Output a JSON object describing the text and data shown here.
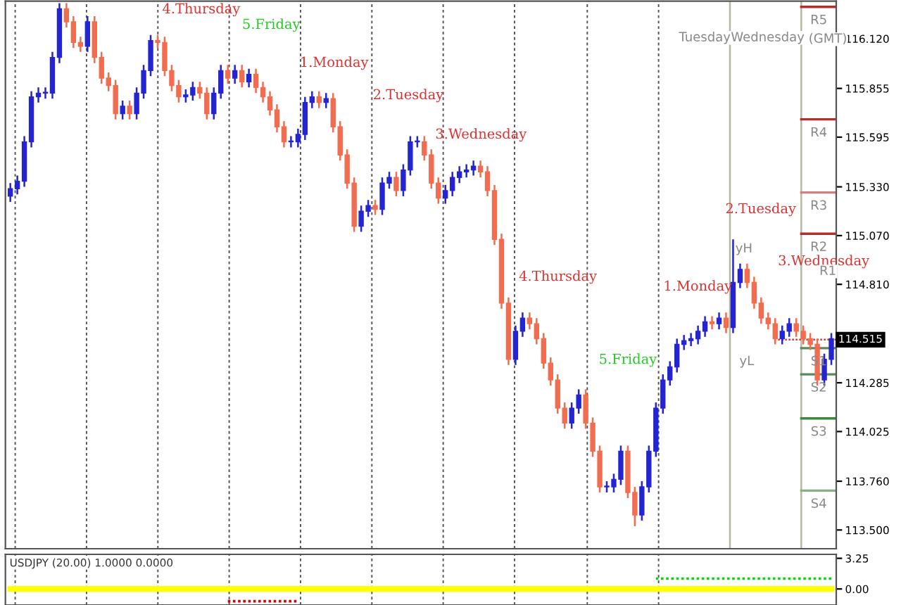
{
  "chart_data": [
    {
      "type": "candlestick",
      "categories": [
        null,
        null,
        null,
        null,
        null,
        null,
        null,
        null,
        null,
        null,
        null,
        null,
        null,
        null,
        null,
        null,
        null,
        null,
        null,
        null,
        null,
        null,
        null,
        null,
        null,
        null,
        null,
        null,
        null,
        null,
        null,
        null,
        null,
        null,
        null,
        null,
        null,
        null,
        null,
        null,
        null,
        null,
        null,
        null,
        null,
        null,
        null,
        null,
        null,
        null,
        null,
        null,
        null,
        null,
        null,
        null,
        null,
        null,
        null,
        null,
        null,
        null,
        null,
        null,
        null,
        null,
        null,
        null,
        null,
        null,
        null,
        null,
        null,
        null,
        null,
        null,
        null,
        null,
        null,
        null,
        null,
        null,
        null,
        null,
        null,
        null,
        null,
        null,
        null,
        null,
        null,
        null,
        null,
        null,
        null,
        null,
        null,
        null,
        null,
        null,
        null,
        null,
        null,
        null,
        null,
        null,
        null,
        null,
        null,
        null,
        null,
        null,
        null,
        null,
        null,
        null,
        null,
        null
      ],
      "ylim": [
        113.4,
        116.32
      ],
      "yticks": [
        {
          "value": 116.12,
          "label": "116.120"
        },
        115.855,
        115.595,
        {
          "value": 115.33,
          "label": "115.330"
        },
        {
          "value": 115.07,
          "label": "115.070"
        },
        {
          "value": 114.81,
          "label": "114.810"
        },
        114.285,
        114.025,
        {
          "value": 113.76,
          "label": "113.760"
        },
        {
          "value": 113.5,
          "label": "113.500"
        }
      ],
      "grid": "x",
      "tick_labels": "y",
      "ohlc": [
        [
          115.28,
          115.35,
          115.25,
          115.32
        ],
        [
          115.32,
          115.39,
          115.29,
          115.36
        ],
        [
          115.36,
          115.6,
          115.33,
          115.57
        ],
        [
          115.57,
          115.84,
          115.54,
          115.81
        ],
        [
          115.81,
          115.86,
          115.78,
          115.83
        ],
        [
          115.83,
          115.86,
          115.8,
          115.83
        ],
        [
          115.83,
          116.05,
          115.8,
          116.02
        ],
        [
          116.02,
          116.31,
          115.99,
          116.28
        ],
        [
          116.28,
          116.31,
          116.18,
          116.21
        ],
        [
          116.21,
          116.24,
          116.07,
          116.1
        ],
        [
          116.1,
          116.13,
          116.05,
          116.08
        ],
        [
          116.08,
          116.24,
          116.05,
          116.21
        ],
        [
          116.21,
          116.24,
          115.99,
          116.02
        ],
        [
          116.02,
          116.05,
          115.88,
          115.91
        ],
        [
          115.91,
          115.94,
          115.84,
          115.87
        ],
        [
          115.87,
          115.9,
          115.69,
          115.72
        ],
        [
          115.72,
          115.79,
          115.69,
          115.76
        ],
        [
          115.76,
          115.79,
          115.69,
          115.72
        ],
        [
          115.72,
          115.86,
          115.69,
          115.83
        ],
        [
          115.83,
          115.98,
          115.8,
          115.95
        ],
        [
          115.95,
          116.14,
          115.92,
          116.11
        ],
        [
          116.11,
          116.14,
          116.07,
          116.1
        ],
        [
          116.1,
          116.13,
          115.92,
          115.95
        ],
        [
          115.95,
          115.98,
          115.84,
          115.87
        ],
        [
          115.87,
          115.9,
          115.78,
          115.81
        ],
        [
          115.81,
          115.85,
          115.78,
          115.82
        ],
        [
          115.82,
          115.89,
          115.79,
          115.86
        ],
        [
          115.86,
          115.89,
          115.8,
          115.83
        ],
        [
          115.83,
          115.86,
          115.69,
          115.72
        ],
        [
          115.72,
          115.86,
          115.69,
          115.83
        ],
        [
          115.83,
          115.98,
          115.8,
          115.95
        ],
        [
          115.95,
          115.98,
          115.88,
          115.91
        ],
        [
          115.91,
          115.98,
          115.88,
          115.95
        ],
        [
          115.95,
          115.98,
          115.86,
          115.89
        ],
        [
          115.89,
          115.96,
          115.86,
          115.93
        ],
        [
          115.93,
          115.96,
          115.83,
          115.86
        ],
        [
          115.86,
          115.89,
          115.78,
          115.81
        ],
        [
          115.81,
          115.84,
          115.71,
          115.74
        ],
        [
          115.74,
          115.77,
          115.62,
          115.65
        ],
        [
          115.65,
          115.68,
          115.54,
          115.57
        ],
        [
          115.57,
          115.6,
          115.54,
          115.57
        ],
        [
          115.57,
          115.64,
          115.54,
          115.61
        ],
        [
          115.61,
          115.81,
          115.58,
          115.78
        ],
        [
          115.78,
          115.84,
          115.75,
          115.81
        ],
        [
          115.81,
          115.84,
          115.75,
          115.78
        ],
        [
          115.78,
          115.83,
          115.75,
          115.8
        ],
        [
          115.8,
          115.83,
          115.62,
          115.65
        ],
        [
          115.65,
          115.68,
          115.47,
          115.5
        ],
        [
          115.5,
          115.53,
          115.32,
          115.35
        ],
        [
          115.35,
          115.38,
          115.09,
          115.12
        ],
        [
          115.12,
          115.23,
          115.09,
          115.2
        ],
        [
          115.2,
          115.26,
          115.17,
          115.23
        ],
        [
          115.23,
          115.26,
          115.18,
          115.21
        ],
        [
          115.21,
          115.38,
          115.18,
          115.35
        ],
        [
          115.35,
          115.41,
          115.32,
          115.38
        ],
        [
          115.38,
          115.41,
          115.28,
          115.31
        ],
        [
          115.31,
          115.45,
          115.28,
          115.42
        ],
        [
          115.42,
          115.6,
          115.39,
          115.57
        ],
        [
          115.57,
          115.6,
          115.54,
          115.57
        ],
        [
          115.57,
          115.6,
          115.47,
          115.5
        ],
        [
          115.5,
          115.53,
          115.32,
          115.35
        ],
        [
          115.35,
          115.38,
          115.24,
          115.27
        ],
        [
          115.27,
          115.34,
          115.24,
          115.31
        ],
        [
          115.31,
          115.41,
          115.28,
          115.38
        ],
        [
          115.38,
          115.44,
          115.35,
          115.41
        ],
        [
          115.41,
          115.45,
          115.38,
          115.42
        ],
        [
          115.42,
          115.47,
          115.39,
          115.44
        ],
        [
          115.44,
          115.47,
          115.38,
          115.41
        ],
        [
          115.41,
          115.44,
          115.28,
          115.31
        ],
        [
          115.31,
          115.34,
          115.02,
          115.05
        ],
        [
          115.05,
          115.08,
          114.68,
          114.71
        ],
        [
          114.71,
          114.74,
          114.38,
          114.41
        ],
        [
          114.41,
          114.59,
          114.38,
          114.56
        ],
        [
          114.56,
          114.66,
          114.53,
          114.63
        ],
        [
          114.63,
          114.66,
          114.57,
          114.6
        ],
        [
          114.6,
          114.63,
          114.49,
          114.52
        ],
        [
          114.52,
          114.55,
          114.36,
          114.39
        ],
        [
          114.39,
          114.42,
          114.27,
          114.3
        ],
        [
          114.3,
          114.33,
          114.12,
          114.15
        ],
        [
          114.15,
          114.18,
          114.04,
          114.07
        ],
        [
          114.07,
          114.18,
          114.04,
          114.15
        ],
        [
          114.15,
          114.25,
          114.12,
          114.22
        ],
        [
          114.22,
          114.25,
          114.04,
          114.07
        ],
        [
          114.07,
          114.1,
          113.89,
          113.92
        ],
        [
          113.92,
          113.95,
          113.7,
          113.73
        ],
        [
          113.73,
          113.76,
          113.7,
          113.73
        ],
        [
          113.73,
          113.8,
          113.7,
          113.77
        ],
        [
          113.77,
          113.95,
          113.74,
          113.92
        ],
        [
          113.92,
          113.95,
          113.67,
          113.7
        ],
        [
          113.7,
          113.73,
          113.52,
          113.58
        ],
        [
          113.58,
          113.76,
          113.55,
          113.73
        ],
        [
          113.73,
          113.95,
          113.7,
          113.92
        ],
        [
          113.92,
          114.18,
          113.89,
          114.15
        ],
        [
          114.15,
          114.33,
          114.12,
          114.3
        ],
        [
          114.3,
          114.4,
          114.27,
          114.37
        ],
        [
          114.37,
          114.52,
          114.34,
          114.49
        ],
        [
          114.49,
          114.54,
          114.46,
          114.51
        ],
        [
          114.51,
          114.55,
          114.48,
          114.52
        ],
        [
          114.52,
          114.59,
          114.49,
          114.56
        ],
        [
          114.56,
          114.64,
          114.53,
          114.61
        ],
        [
          114.61,
          114.64,
          114.57,
          114.6
        ],
        [
          114.6,
          114.66,
          114.57,
          114.63
        ],
        [
          114.63,
          114.66,
          114.55,
          114.58
        ],
        [
          114.58,
          115.05,
          114.55,
          114.82
        ],
        [
          114.82,
          114.92,
          114.79,
          114.89
        ],
        [
          114.89,
          114.92,
          114.79,
          114.82
        ],
        [
          114.82,
          114.85,
          114.68,
          114.71
        ],
        [
          114.71,
          114.74,
          114.6,
          114.63
        ],
        [
          114.63,
          114.66,
          114.57,
          114.6
        ],
        [
          114.6,
          114.63,
          114.49,
          114.52
        ],
        [
          114.52,
          114.59,
          114.49,
          114.56
        ],
        [
          114.56,
          114.63,
          114.53,
          114.6
        ],
        [
          114.6,
          114.63,
          114.53,
          114.56
        ],
        [
          114.56,
          114.59,
          114.49,
          114.52
        ],
        [
          114.52,
          114.55,
          114.46,
          114.49
        ],
        [
          114.49,
          114.52,
          114.27,
          114.3
        ],
        [
          114.3,
          114.44,
          114.27,
          114.41
        ],
        [
          114.41,
          114.55,
          114.38,
          114.52
        ]
      ],
      "colors": [
        "#2424d0",
        "#2424d0",
        "#2424d0",
        "#2424d0",
        "#2424d0",
        "#2424d0",
        "#2424d0",
        "#2424d0",
        "#f26c4f",
        "#f26c4f",
        "#f26c4f",
        "#2424d0",
        "#f26c4f",
        "#f26c4f",
        "#f26c4f",
        "#f26c4f",
        "#2424d0",
        "#f26c4f",
        "#2424d0",
        "#2424d0",
        "#2424d0",
        "#f26c4f",
        "#f26c4f",
        "#f26c4f",
        "#f26c4f",
        "#2424d0",
        "#2424d0",
        "#f26c4f",
        "#f26c4f",
        "#2424d0",
        "#2424d0",
        "#f26c4f",
        "#2424d0",
        "#f26c4f",
        "#2424d0",
        "#f26c4f",
        "#f26c4f",
        "#f26c4f",
        "#f26c4f",
        "#f26c4f",
        "#2424d0",
        "#2424d0",
        "#2424d0",
        "#2424d0",
        "#f26c4f",
        "#2424d0",
        "#f26c4f",
        "#f26c4f",
        "#f26c4f",
        "#f26c4f",
        "#2424d0",
        "#2424d0",
        "#f26c4f",
        "#2424d0",
        "#2424d0",
        "#f26c4f",
        "#2424d0",
        "#2424d0",
        "#2424d0",
        "#f26c4f",
        "#f26c4f",
        "#f26c4f",
        "#2424d0",
        "#2424d0",
        "#2424d0",
        "#2424d0",
        "#2424d0",
        "#f26c4f",
        "#f26c4f",
        "#f26c4f",
        "#f26c4f",
        "#f26c4f",
        "#2424d0",
        "#2424d0",
        "#f26c4f",
        "#f26c4f",
        "#f26c4f",
        "#f26c4f",
        "#f26c4f",
        "#f26c4f",
        "#2424d0",
        "#2424d0",
        "#f26c4f",
        "#f26c4f",
        "#f26c4f",
        "#2424d0",
        "#2424d0",
        "#2424d0",
        "#f26c4f",
        "#f26c4f",
        "#2424d0",
        "#2424d0",
        "#2424d0",
        "#2424d0",
        "#2424d0",
        "#2424d0",
        "#2424d0",
        "#2424d0",
        "#2424d0",
        "#2424d0",
        "#f26c4f",
        "#2424d0",
        "#f26c4f",
        "#2424d0",
        "#2424d0",
        "#f26c4f",
        "#f26c4f",
        "#f26c4f",
        "#f26c4f",
        "#f26c4f",
        "#2424d0",
        "#2424d0",
        "#f26c4f",
        "#f26c4f",
        "#f26c4f",
        "#f26c4f",
        "#2424d0",
        "#2424d0"
      ],
      "ref_lines": [
        {
          "axis": "y",
          "value": 116.29,
          "label": "R5",
          "color": "#b03030"
        },
        {
          "axis": "y",
          "value": 115.69,
          "label": "R4",
          "color": "#b03030"
        },
        {
          "axis": "y",
          "value": 115.3,
          "label": "R3",
          "color": "#d08080"
        },
        {
          "axis": "y",
          "value": 115.08,
          "label": "R2",
          "color": "#b03030"
        },
        {
          "axis": "y",
          "value": 114.47,
          "label": "S1",
          "color": "#5a8a5a"
        },
        {
          "axis": "y",
          "value": 114.33,
          "label": "S2",
          "color": "#5a8a5a"
        },
        {
          "axis": "y",
          "value": 114.095,
          "label": "S3",
          "color": "#3a8a3a"
        },
        {
          "axis": "y",
          "value": 113.71,
          "label": "S4",
          "color": "#8ab08a"
        },
        {
          "axis": "y",
          "value": 114.515,
          "label": "114.515",
          "color": "#e03030",
          "line_style": "dotted"
        }
      ],
      "annotations": [
        "4.Thursday",
        "5.Friday",
        "1.Monday",
        "2.Tuesday",
        "3.Wednesday",
        "4.Thursday",
        "5.Friday",
        "1.Monday",
        "2.Tuesday",
        "3.Wednesday",
        "Tuesday",
        "Wednesday",
        "(GMT)",
        "R1",
        "yH",
        "yL"
      ]
    },
    {
      "type": "line",
      "title": "USDJPY (20.00) 1.0000 0.0000",
      "categories": [
        null,
        null,
        null,
        null,
        null,
        null,
        null,
        null,
        null,
        null,
        null,
        null,
        null,
        null,
        null,
        null,
        null,
        null,
        null,
        null,
        null,
        null,
        null,
        null,
        null,
        null,
        null,
        null,
        null,
        null,
        null,
        null,
        null,
        null,
        null,
        null,
        null,
        null,
        null,
        null,
        null,
        null,
        null,
        null,
        null,
        null,
        null,
        null,
        null,
        null,
        null,
        null,
        null,
        null,
        null,
        null,
        null,
        null,
        null,
        null,
        null,
        null,
        null,
        null,
        null,
        null,
        null,
        null,
        null,
        null,
        null,
        null,
        null,
        null,
        null,
        null,
        null,
        null,
        null,
        null,
        null,
        null,
        null,
        null,
        null,
        null,
        null,
        null,
        null,
        null,
        null,
        null,
        null,
        null,
        null,
        null,
        null,
        null,
        null,
        null,
        null,
        null,
        null,
        null,
        null,
        null,
        null,
        null,
        null,
        null,
        null,
        null,
        null,
        null,
        null,
        null,
        null,
        null
      ],
      "ylim": [
        -1.7,
        3.67
      ],
      "yticks": [
        3.25,
        {
          "value": 0,
          "label": "0.00"
        }
      ],
      "grid": "x",
      "tick_labels": "y",
      "series": [
        {
          "color": "#ffff00",
          "values": [
            0,
            0,
            0,
            0,
            0,
            0,
            0,
            0,
            0,
            0,
            0,
            0,
            0,
            0,
            0,
            0,
            0,
            0,
            0,
            0,
            0,
            0,
            0,
            0,
            0,
            0,
            0,
            0,
            0,
            0,
            0,
            0,
            0,
            0,
            0,
            0,
            0,
            0,
            0,
            0,
            0,
            0,
            0,
            0,
            0,
            0,
            0,
            0,
            0,
            0,
            0,
            0,
            0,
            0,
            0,
            0,
            0,
            0,
            0,
            0,
            0,
            0,
            0,
            0,
            0,
            0,
            0,
            0,
            0,
            0,
            0,
            0,
            0,
            0,
            0,
            0,
            0,
            0,
            0,
            0,
            0,
            0,
            0,
            0,
            0,
            0,
            0,
            0,
            0,
            0,
            0,
            0,
            0,
            0,
            0,
            0,
            0,
            0,
            0,
            0,
            0,
            0,
            0,
            0,
            0,
            0,
            0,
            0,
            0,
            0,
            0,
            0,
            0,
            0,
            0,
            0,
            0,
            0
          ]
        },
        {
          "color": "#00dd00",
          "line_style": "dotted",
          "values": [
            null,
            null,
            null,
            null,
            null,
            null,
            null,
            null,
            null,
            null,
            null,
            null,
            null,
            null,
            null,
            null,
            null,
            null,
            null,
            null,
            null,
            null,
            null,
            null,
            null,
            null,
            null,
            null,
            null,
            null,
            null,
            null,
            null,
            null,
            null,
            null,
            null,
            null,
            null,
            null,
            null,
            null,
            null,
            null,
            null,
            null,
            null,
            null,
            null,
            null,
            null,
            null,
            null,
            null,
            null,
            null,
            null,
            null,
            null,
            null,
            null,
            null,
            null,
            null,
            null,
            null,
            null,
            null,
            null,
            null,
            null,
            null,
            null,
            null,
            null,
            null,
            null,
            null,
            null,
            null,
            null,
            null,
            null,
            null,
            null,
            null,
            null,
            null,
            null,
            null,
            null,
            null,
            1.1,
            1.1,
            1.1,
            1.1,
            1.1,
            1.1,
            1.1,
            1.1,
            1.1,
            1.1,
            1.1,
            1.1,
            1.1,
            1.1,
            1.1,
            1.1,
            1.1,
            1.1,
            1.1,
            1.1,
            1.1,
            1.1,
            1.1,
            1.1,
            1.1,
            1.1
          ]
        },
        {
          "color": "#dd0000",
          "line_style": "dotted",
          "values": [
            null,
            null,
            null,
            null,
            null,
            null,
            null,
            null,
            null,
            null,
            null,
            null,
            null,
            null,
            null,
            null,
            null,
            null,
            null,
            null,
            null,
            null,
            null,
            null,
            null,
            null,
            null,
            null,
            null,
            null,
            null,
            -1.3,
            -1.3,
            -1.3,
            -1.3,
            -1.3,
            -1.3,
            -1.3,
            -1.3,
            -1.3,
            -1.3,
            -1.3,
            null,
            null,
            null,
            null,
            null,
            null,
            null,
            null,
            null,
            null,
            null,
            null,
            null,
            null,
            null,
            null,
            null,
            null,
            null,
            null,
            null,
            null,
            null,
            null,
            null,
            null,
            null,
            null,
            null,
            null,
            null,
            null,
            null,
            null,
            null,
            null,
            null,
            null,
            null,
            null,
            null,
            null,
            null,
            null,
            null,
            null,
            null,
            null,
            null,
            null,
            null,
            null,
            null,
            null,
            null,
            null,
            null,
            null,
            null,
            null,
            null,
            null,
            null,
            null,
            null,
            null,
            null,
            null,
            null,
            null,
            null,
            null,
            null,
            null,
            null,
            null
          ]
        }
      ]
    }
  ]
}
